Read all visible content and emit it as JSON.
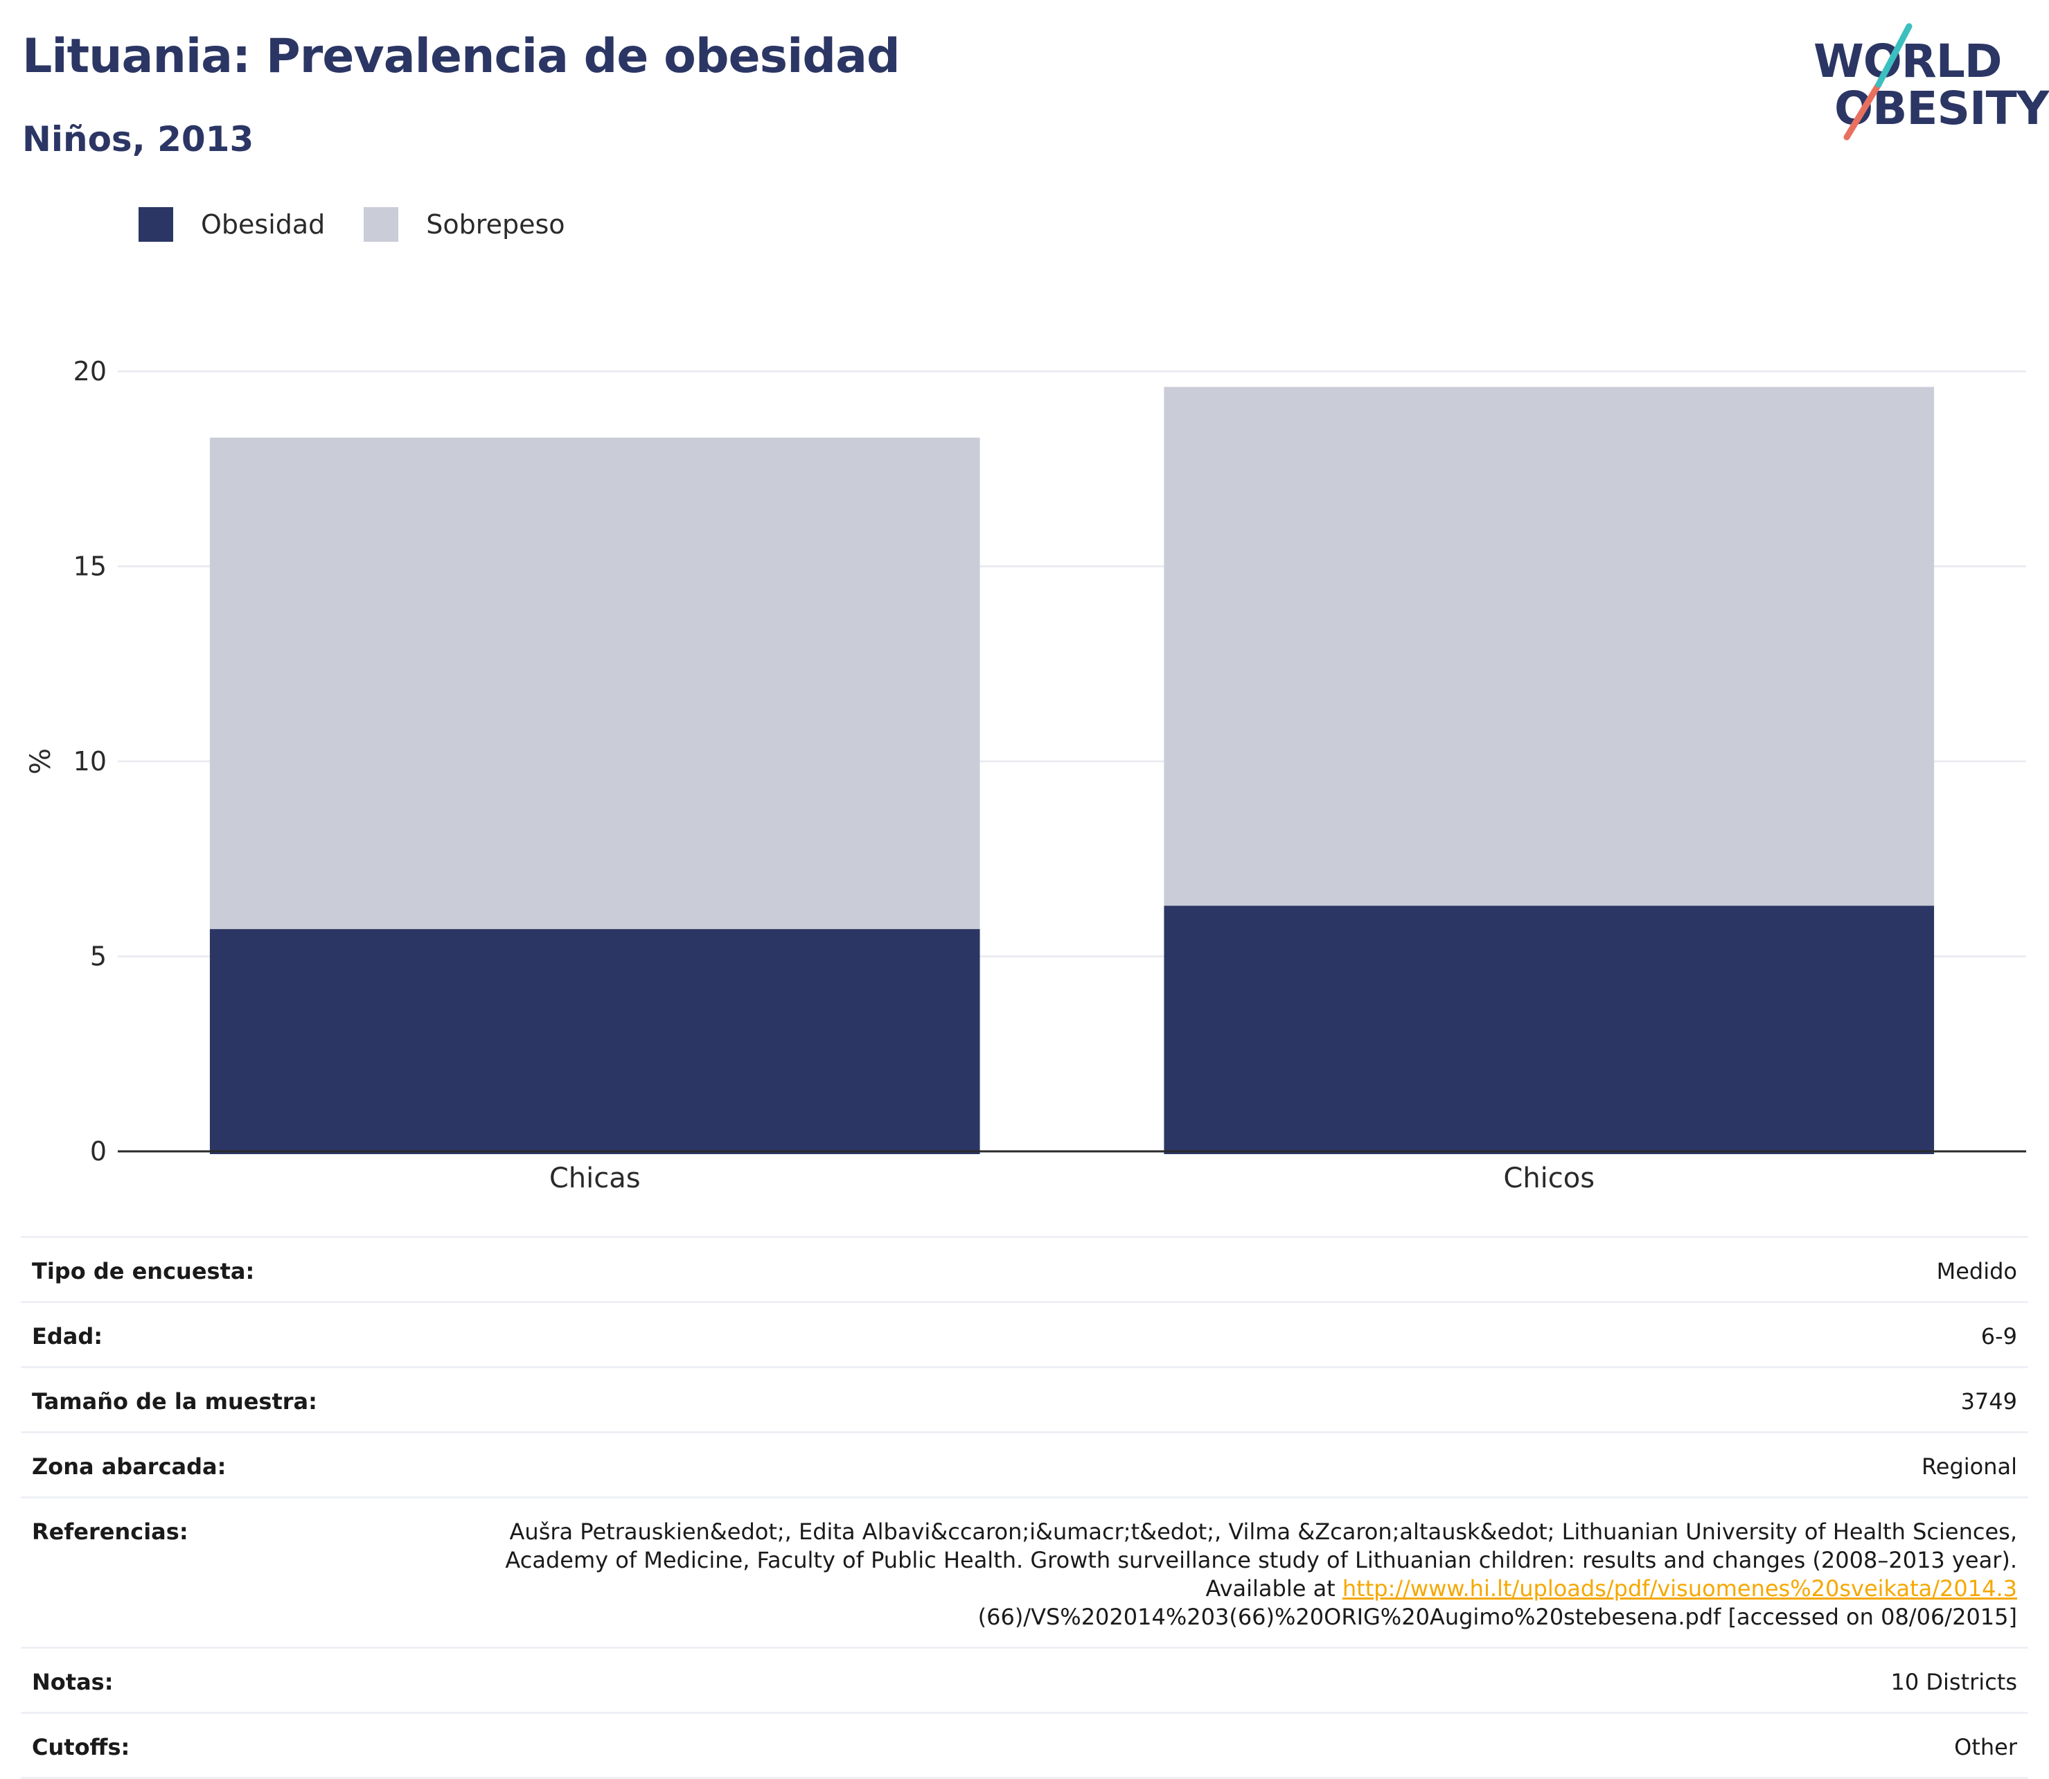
{
  "header": {
    "title": "Lituania: Prevalencia de obesidad",
    "subtitle": "Niños, 2013",
    "logo_line1": "WORLD",
    "logo_line2": "OBESITY"
  },
  "legend": [
    {
      "label": "Obesidad",
      "color": "#2b3664"
    },
    {
      "label": "Sobrepeso",
      "color": "#caccd7"
    }
  ],
  "chart_data": {
    "type": "bar",
    "stacked": true,
    "categories": [
      "Chicas",
      "Chicos"
    ],
    "series": [
      {
        "name": "Obesidad",
        "values": [
          5.7,
          6.3
        ],
        "color": "#2b3664"
      },
      {
        "name": "Sobrepeso",
        "values": [
          12.6,
          13.3
        ],
        "color": "#caccd7"
      }
    ],
    "ylabel": "%",
    "xlabel": "",
    "ylim": [
      0,
      20
    ],
    "yticks": [
      0,
      5,
      10,
      15,
      20
    ],
    "grid": true,
    "legend_position": "top-left"
  },
  "info": {
    "survey_type": {
      "label": "Tipo de encuesta:",
      "value": "Medido"
    },
    "age": {
      "label": "Edad:",
      "value": "6-9"
    },
    "sample_size": {
      "label": "Tamaño de la muestra:",
      "value": "3749"
    },
    "area": {
      "label": "Zona abarcada:",
      "value": "Regional"
    },
    "references": {
      "label": "Referencias:",
      "line1": "Aušra Petrauskien&edot;, Edita Albavi&ccaron;i&umacr;t&edot;, Vilma &Zcaron;altausk&edot; Lithuanian University of Health Sciences,",
      "line2": "Academy of Medicine, Faculty of Public Health. Growth surveillance study of Lithuanian children: results and changes (2008–2013 year).",
      "line3_prefix": "Available at ",
      "link": "http://www.hi.lt/uploads/pdf/visuomenes%20sveikata/2014.3",
      "line4": "(66)/VS%202014%203(66)%20ORIG%20Augimo%20stebesena.pdf [accessed on 08/06/2015]"
    },
    "notes": {
      "label": "Notas:",
      "value": "10 Districts"
    },
    "cutoffs": {
      "label": "Cutoffs:",
      "value": "Other"
    }
  }
}
